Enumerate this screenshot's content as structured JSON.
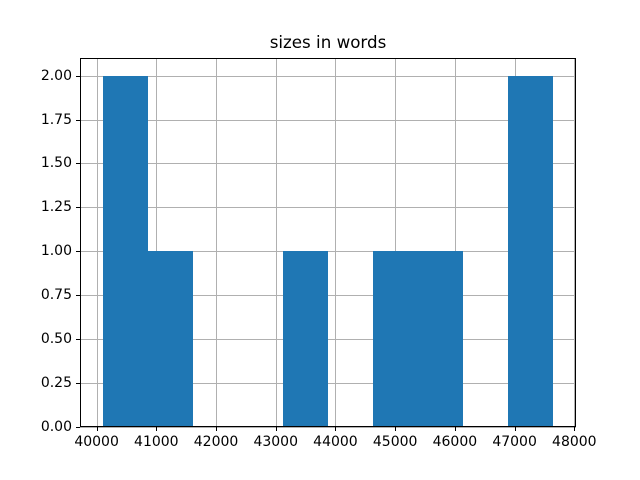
{
  "chart_data": {
    "type": "bar",
    "subtype": "histogram",
    "title": "sizes in words",
    "xlabel": "",
    "ylabel": "",
    "bin_edges": [
      40100,
      40855,
      41610,
      42365,
      43120,
      43875,
      44630,
      45385,
      46140,
      46895,
      47650
    ],
    "counts": [
      2,
      1,
      0,
      0,
      1,
      0,
      1,
      1,
      0,
      2
    ],
    "xlim": [
      39722,
      48028
    ],
    "ylim": [
      0,
      2.1
    ],
    "xticks": [
      40000,
      41000,
      42000,
      43000,
      44000,
      45000,
      46000,
      47000,
      48000
    ],
    "xtick_labels": [
      "40000",
      "41000",
      "42000",
      "43000",
      "44000",
      "45000",
      "46000",
      "47000",
      "48000"
    ],
    "yticks": [
      0,
      0.25,
      0.5,
      0.75,
      1,
      1.25,
      1.5,
      1.75,
      2
    ],
    "ytick_labels": [
      "0.00",
      "0.25",
      "0.50",
      "0.75",
      "1.00",
      "1.25",
      "1.50",
      "1.75",
      "2.00"
    ],
    "grid": true,
    "grid_color": "#b0b0b0",
    "bar_color": "#1f77b4",
    "spine_color": "#000000",
    "background_color": "#ffffff",
    "legend": "none"
  }
}
